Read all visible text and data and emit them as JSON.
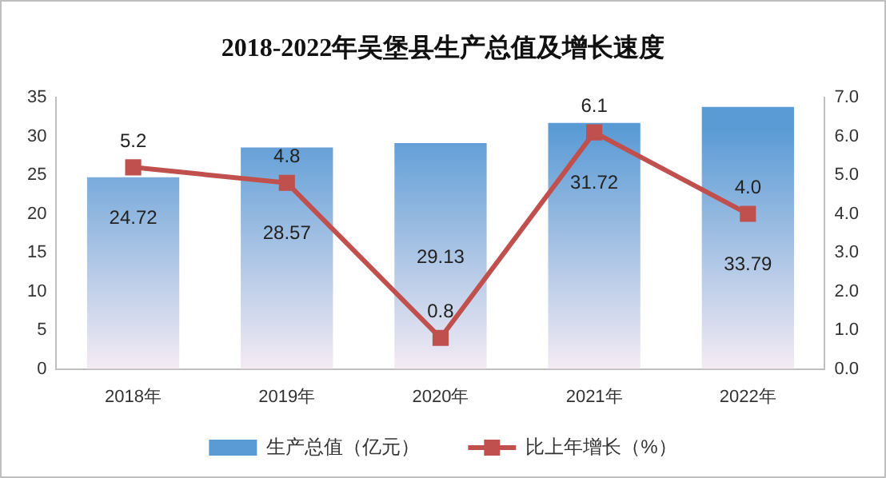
{
  "chart_data": {
    "type": "bar",
    "title": "2018-2022年吴堡县生产总值及增长速度",
    "categories": [
      "2018年",
      "2019年",
      "2020年",
      "2021年",
      "2022年"
    ],
    "series": [
      {
        "name": "生产总值（亿元）",
        "color": "#5b9bd5",
        "values": [
          24.72,
          28.57,
          29.13,
          31.72,
          33.79
        ]
      },
      {
        "name": "比上年增长（%）",
        "type": "line",
        "axis": "y2",
        "color": "#c0504d",
        "marker": "square",
        "values": [
          5.2,
          4.8,
          0.8,
          6.1,
          4.0
        ],
        "value_labels": [
          "5.2",
          "4.8",
          "0.8",
          "6.1",
          "4.0"
        ]
      }
    ],
    "ylim": [
      0,
      35
    ],
    "yticks": [
      0,
      5,
      10,
      15,
      20,
      25,
      30,
      35
    ],
    "y2lim": [
      0,
      7
    ],
    "y2ticks": [
      {
        "value": 0,
        "label": "0.0"
      },
      {
        "value": 1,
        "label": "1.0"
      },
      {
        "value": 2,
        "label": "2.0"
      },
      {
        "value": 3,
        "label": "3.0"
      },
      {
        "value": 4,
        "label": "4.0"
      },
      {
        "value": 5,
        "label": "5.0"
      },
      {
        "value": 6,
        "label": "6.0"
      },
      {
        "value": 7,
        "label": "7.0"
      }
    ],
    "data_labels": true,
    "legend": "bottom",
    "grid": false
  }
}
